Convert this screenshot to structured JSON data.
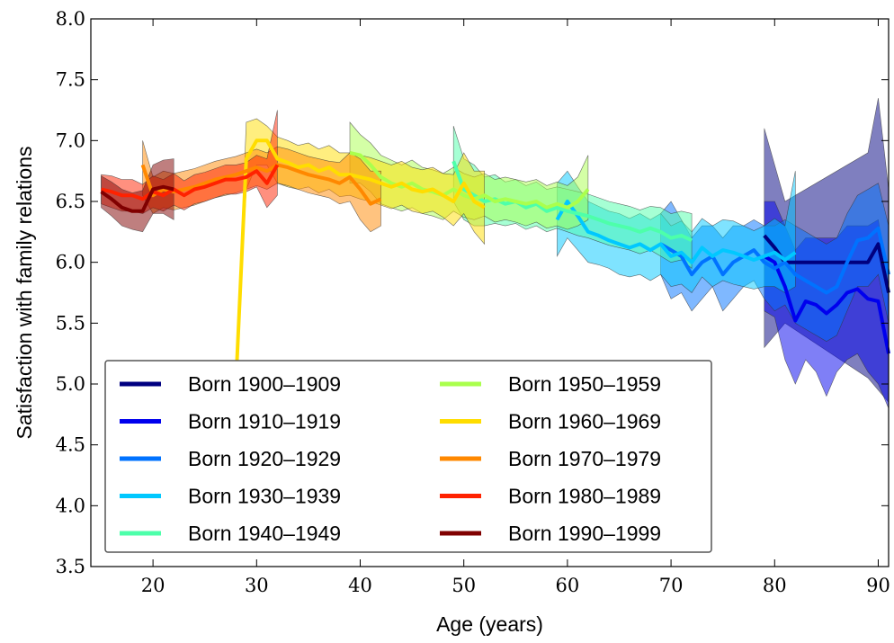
{
  "chart_data": {
    "type": "line",
    "title": "",
    "xlabel": "Age (years)",
    "ylabel": "Satisfaction with family relations",
    "xlim": [
      14,
      91
    ],
    "ylim": [
      3.5,
      8.0
    ],
    "xticks": [
      20,
      30,
      40,
      50,
      60,
      70,
      80,
      90
    ],
    "yticks": [
      3.5,
      4.0,
      4.5,
      5.0,
      5.5,
      6.0,
      6.5,
      7.0,
      7.5,
      8.0
    ],
    "ytick_labels": [
      "3.5",
      "4.0",
      "4.5",
      "5.0",
      "5.5",
      "6.0",
      "6.5",
      "7.0",
      "7.5",
      "8.0"
    ],
    "grid": false,
    "legend_position": "lower-left",
    "series": [
      {
        "name": "Born 1900–1909",
        "color": "#000080",
        "x": [
          79,
          80,
          81,
          89,
          90,
          91
        ],
        "y": [
          6.22,
          6.12,
          6.0,
          6.0,
          6.15,
          5.75
        ],
        "band_low": [
          5.3,
          5.4,
          5.5,
          5.05,
          4.95,
          4.85
        ],
        "band_high": [
          7.1,
          6.8,
          6.5,
          6.9,
          7.35,
          6.6
        ]
      },
      {
        "name": "Born 1910–1919",
        "color": "#0000ee",
        "x": [
          79,
          80,
          81,
          82,
          83,
          84,
          85,
          86,
          87,
          88,
          89,
          90,
          91
        ],
        "y": [
          6.05,
          6.0,
          5.8,
          5.52,
          5.68,
          5.65,
          5.58,
          5.65,
          5.75,
          5.78,
          5.7,
          5.68,
          5.25
        ],
        "band_low": [
          5.6,
          5.55,
          5.2,
          5.0,
          5.2,
          5.1,
          4.9,
          5.1,
          5.2,
          5.25,
          5.1,
          5.0,
          4.8
        ],
        "band_high": [
          6.5,
          6.5,
          6.3,
          6.1,
          6.2,
          6.2,
          6.2,
          6.2,
          6.3,
          6.3,
          6.3,
          6.35,
          5.8
        ]
      },
      {
        "name": "Born 1920–1929",
        "color": "#0072ff",
        "x": [
          69,
          70,
          71,
          72,
          73,
          74,
          75,
          76,
          77,
          78,
          79,
          80,
          81,
          82,
          83,
          84,
          85,
          86,
          87,
          88,
          89,
          90,
          91
        ],
        "y": [
          6.15,
          6.1,
          6.05,
          5.9,
          6.0,
          6.05,
          5.9,
          6.0,
          6.05,
          6.1,
          6.0,
          5.95,
          6.0,
          5.9,
          5.85,
          5.8,
          5.75,
          5.8,
          6.0,
          6.18,
          6.2,
          6.28,
          5.9
        ],
        "band_low": [
          5.9,
          5.7,
          5.75,
          5.6,
          5.7,
          5.8,
          5.6,
          5.7,
          5.8,
          5.85,
          5.7,
          5.6,
          5.65,
          5.5,
          5.45,
          5.4,
          5.35,
          5.4,
          5.6,
          5.8,
          5.8,
          5.9,
          5.5
        ],
        "band_high": [
          6.4,
          6.5,
          6.35,
          6.2,
          6.3,
          6.3,
          6.2,
          6.3,
          6.3,
          6.35,
          6.3,
          6.3,
          6.35,
          6.3,
          6.25,
          6.2,
          6.15,
          6.2,
          6.4,
          6.55,
          6.6,
          6.65,
          6.3
        ]
      },
      {
        "name": "Born 1930–1939",
        "color": "#00c8ff",
        "x": [
          59,
          60,
          61,
          62,
          63,
          64,
          65,
          66,
          67,
          68,
          69,
          70,
          71,
          72,
          73,
          74,
          75,
          76,
          77,
          78,
          79,
          80,
          81,
          82
        ],
        "y": [
          6.35,
          6.5,
          6.38,
          6.25,
          6.22,
          6.18,
          6.15,
          6.12,
          6.15,
          6.1,
          6.15,
          6.05,
          6.08,
          6.0,
          6.12,
          6.05,
          6.1,
          6.08,
          6.05,
          6.02,
          6.05,
          6.08,
          6.02,
          6.08
        ],
        "band_low": [
          6.05,
          6.2,
          6.1,
          6.0,
          5.98,
          5.95,
          5.9,
          5.88,
          5.9,
          5.85,
          5.9,
          5.8,
          5.82,
          5.75,
          5.88,
          5.8,
          5.85,
          5.82,
          5.8,
          5.78,
          5.8,
          5.8,
          5.75,
          5.8
        ],
        "band_high": [
          6.65,
          6.75,
          6.62,
          6.5,
          6.46,
          6.42,
          6.4,
          6.36,
          6.4,
          6.35,
          6.4,
          6.3,
          6.34,
          6.25,
          6.36,
          6.3,
          6.35,
          6.34,
          6.3,
          6.26,
          6.3,
          6.36,
          6.3,
          6.75
        ]
      },
      {
        "name": "Born 1940–1949",
        "color": "#4dffaa",
        "x": [
          49,
          50,
          51,
          52,
          53,
          54,
          55,
          56,
          57,
          58,
          59,
          60,
          61,
          62,
          63,
          64,
          65,
          66,
          67,
          68,
          69,
          70,
          71,
          72
        ],
        "y": [
          6.83,
          6.6,
          6.55,
          6.5,
          6.52,
          6.48,
          6.5,
          6.45,
          6.48,
          6.42,
          6.45,
          6.42,
          6.4,
          6.38,
          6.35,
          6.32,
          6.3,
          6.28,
          6.25,
          6.28,
          6.25,
          6.2,
          6.22,
          6.18
        ],
        "band_low": [
          6.5,
          6.35,
          6.3,
          6.3,
          6.32,
          6.3,
          6.32,
          6.27,
          6.3,
          6.25,
          6.28,
          6.25,
          6.22,
          6.2,
          6.17,
          6.14,
          6.12,
          6.1,
          6.07,
          6.1,
          6.05,
          6.0,
          6.02,
          5.95
        ],
        "band_high": [
          7.12,
          6.85,
          6.8,
          6.7,
          6.72,
          6.66,
          6.68,
          6.63,
          6.66,
          6.6,
          6.62,
          6.6,
          6.58,
          6.56,
          6.53,
          6.5,
          6.48,
          6.46,
          6.43,
          6.46,
          6.45,
          6.4,
          6.42,
          6.4
        ]
      },
      {
        "name": "Born 1950–1959",
        "color": "#aaff4d",
        "x": [
          39,
          40,
          41,
          42,
          43,
          44,
          45,
          46,
          47,
          48,
          49,
          50,
          51,
          52,
          53,
          54,
          55,
          56,
          57,
          58,
          59,
          60,
          61,
          62
        ],
        "y": [
          6.9,
          6.88,
          6.8,
          6.7,
          6.65,
          6.62,
          6.65,
          6.6,
          6.58,
          6.55,
          6.6,
          6.55,
          6.52,
          6.55,
          6.5,
          6.52,
          6.5,
          6.48,
          6.5,
          6.45,
          6.48,
          6.45,
          6.5,
          6.6
        ],
        "band_low": [
          6.65,
          6.65,
          6.58,
          6.48,
          6.45,
          6.42,
          6.45,
          6.4,
          6.38,
          6.35,
          6.42,
          6.37,
          6.35,
          6.38,
          6.33,
          6.35,
          6.33,
          6.3,
          6.33,
          6.28,
          6.3,
          6.27,
          6.3,
          6.35
        ],
        "band_high": [
          7.15,
          7.05,
          6.98,
          6.88,
          6.84,
          6.8,
          6.84,
          6.78,
          6.76,
          6.73,
          6.78,
          6.73,
          6.7,
          6.73,
          6.68,
          6.7,
          6.68,
          6.66,
          6.68,
          6.63,
          6.66,
          6.63,
          6.7,
          6.88
        ]
      },
      {
        "name": "Born 1960–1969",
        "color": "#ffdd00",
        "x": [
          28,
          29,
          30,
          31,
          32,
          33,
          34,
          35,
          36,
          37,
          38,
          39,
          40,
          41,
          42,
          43,
          44,
          45,
          46,
          47,
          48,
          49,
          50,
          51,
          52
        ],
        "y": [
          5.0,
          6.85,
          7.0,
          7.0,
          6.85,
          6.82,
          6.78,
          6.8,
          6.75,
          6.78,
          6.72,
          6.72,
          6.7,
          6.68,
          6.65,
          6.62,
          6.65,
          6.6,
          6.58,
          6.6,
          6.55,
          6.5,
          6.65,
          6.5,
          6.45
        ],
        "band_low": [
          5.0,
          6.6,
          6.8,
          6.8,
          6.65,
          6.62,
          6.6,
          6.62,
          6.57,
          6.6,
          6.54,
          6.55,
          6.52,
          6.5,
          6.47,
          6.44,
          6.47,
          6.42,
          6.4,
          6.42,
          6.37,
          6.3,
          6.4,
          6.25,
          6.15
        ],
        "band_high": [
          5.0,
          7.15,
          7.18,
          7.12,
          7.03,
          7.0,
          6.96,
          6.98,
          6.93,
          6.96,
          6.9,
          6.9,
          6.88,
          6.86,
          6.83,
          6.8,
          6.83,
          6.78,
          6.76,
          6.78,
          6.73,
          6.72,
          6.9,
          6.75,
          6.75
        ]
      },
      {
        "name": "Born 1970–1979",
        "color": "#ff8800",
        "x": [
          19,
          20,
          21,
          22,
          23,
          24,
          25,
          26,
          27,
          28,
          29,
          30,
          31,
          32,
          33,
          34,
          35,
          36,
          37,
          38,
          39,
          40,
          41,
          42
        ],
        "y": [
          6.8,
          6.55,
          6.6,
          6.58,
          6.6,
          6.62,
          6.65,
          6.68,
          6.7,
          6.72,
          6.75,
          6.78,
          6.75,
          6.8,
          6.78,
          6.75,
          6.72,
          6.7,
          6.68,
          6.65,
          6.7,
          6.6,
          6.48,
          6.52
        ],
        "band_low": [
          6.55,
          6.4,
          6.45,
          6.43,
          6.45,
          6.47,
          6.5,
          6.53,
          6.55,
          6.57,
          6.6,
          6.63,
          6.6,
          6.65,
          6.63,
          6.6,
          6.57,
          6.55,
          6.53,
          6.48,
          6.5,
          6.35,
          6.25,
          6.3
        ],
        "band_high": [
          7.0,
          6.7,
          6.75,
          6.73,
          6.75,
          6.77,
          6.8,
          6.83,
          6.85,
          6.87,
          6.9,
          6.93,
          6.9,
          6.95,
          6.93,
          6.9,
          6.87,
          6.85,
          6.83,
          6.82,
          6.9,
          6.85,
          6.75,
          6.75
        ]
      },
      {
        "name": "Born 1980–1989",
        "color": "#ff2200",
        "x": [
          15,
          16,
          17,
          18,
          19,
          20,
          21,
          22,
          23,
          24,
          25,
          26,
          27,
          28,
          29,
          30,
          31,
          32
        ],
        "y": [
          6.6,
          6.58,
          6.55,
          6.55,
          6.52,
          6.58,
          6.55,
          6.6,
          6.55,
          6.6,
          6.62,
          6.65,
          6.68,
          6.68,
          6.7,
          6.75,
          6.65,
          6.8
        ],
        "band_low": [
          6.48,
          6.45,
          6.42,
          6.42,
          6.4,
          6.45,
          6.42,
          6.47,
          6.43,
          6.48,
          6.5,
          6.53,
          6.56,
          6.56,
          6.58,
          6.62,
          6.45,
          6.55
        ],
        "band_high": [
          6.72,
          6.71,
          6.68,
          6.68,
          6.64,
          6.71,
          6.68,
          6.73,
          6.67,
          6.72,
          6.74,
          6.77,
          6.8,
          6.8,
          6.82,
          6.88,
          6.85,
          7.25
        ]
      },
      {
        "name": "Born 1990–1999",
        "color": "#800000",
        "x": [
          15,
          16,
          17,
          18,
          19,
          20,
          21,
          22
        ],
        "y": [
          6.58,
          6.52,
          6.45,
          6.42,
          6.42,
          6.6,
          6.62,
          6.6
        ],
        "band_low": [
          6.45,
          6.38,
          6.3,
          6.27,
          6.25,
          6.4,
          6.4,
          6.35
        ],
        "band_high": [
          6.71,
          6.66,
          6.6,
          6.57,
          6.59,
          6.8,
          6.84,
          6.85
        ]
      }
    ]
  }
}
